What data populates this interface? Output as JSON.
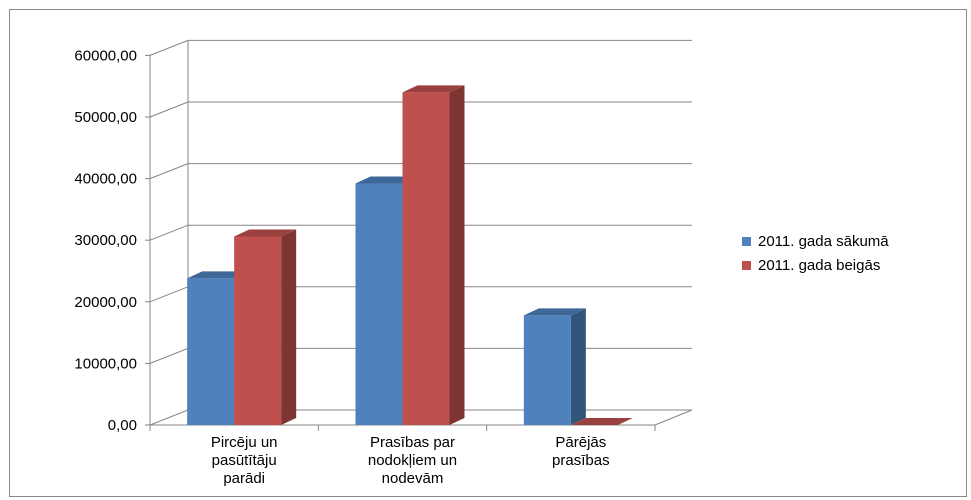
{
  "chart_data": {
    "type": "bar",
    "categories": [
      [
        "Pircēju un",
        "pasūtītāju",
        "parādi"
      ],
      [
        "Prasības par",
        "nodokļiem un",
        "nodevām"
      ],
      [
        "Pārējās",
        "prasības"
      ]
    ],
    "series": [
      {
        "name": "2011. gada sākumā",
        "values": [
          23800,
          39200,
          17800
        ],
        "color": "#4F81BD"
      },
      {
        "name": "2011. gada beigās",
        "values": [
          30600,
          54000,
          0
        ],
        "color": "#C0504D"
      }
    ],
    "yticks": [
      "0,00",
      "10000,00",
      "20000,00",
      "30000,00",
      "40000,00",
      "50000,00",
      "60000,00"
    ],
    "ylim": [
      0,
      60000
    ],
    "grid": true,
    "legend": "right",
    "title": "",
    "xlabel": "",
    "ylabel": ""
  }
}
